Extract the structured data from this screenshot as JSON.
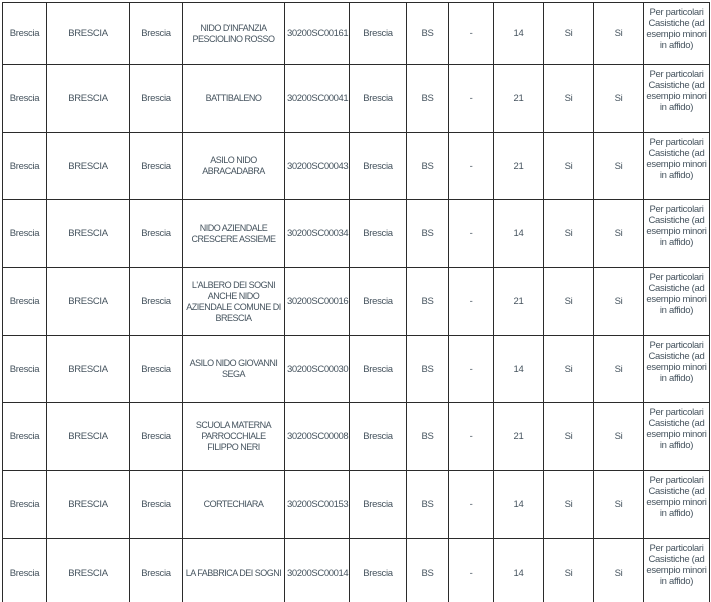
{
  "colors": {
    "background": "#ffffff",
    "border": "#2b2b2b",
    "text": "#45535e"
  },
  "table": {
    "rows": [
      [
        "Brescia",
        "BRESCIA",
        "Brescia",
        "NIDO D'INFANZIA PESCIOLINO ROSSO",
        "30200SC00161",
        "Brescia",
        "BS",
        "-",
        "14",
        "Si",
        "Si",
        "Per particolari Casistiche (ad esempio minori in affido)"
      ],
      [
        "Brescia",
        "BRESCIA",
        "Brescia",
        "BATTIBALENO",
        "30200SC00041",
        "Brescia",
        "BS",
        "-",
        "21",
        "Si",
        "Si",
        "Per particolari Casistiche (ad esempio minori in affido)"
      ],
      [
        "Brescia",
        "BRESCIA",
        "Brescia",
        "ASILO NIDO ABRACADABRA",
        "30200SC00043",
        "Brescia",
        "BS",
        "-",
        "21",
        "Si",
        "Si",
        "Per particolari Casistiche (ad esempio minori in affido)"
      ],
      [
        "Brescia",
        "BRESCIA",
        "Brescia",
        "NIDO AZIENDALE CRESCERE ASSIEME",
        "30200SC00034",
        "Brescia",
        "BS",
        "-",
        "14",
        "Si",
        "Si",
        "Per particolari Casistiche (ad esempio minori in affido)"
      ],
      [
        "Brescia",
        "BRESCIA",
        "Brescia",
        "L'ALBERO DEI SOGNI ANCHE NIDO AZIENDALE COMUNE DI BRESCIA",
        "30200SC00016",
        "Brescia",
        "BS",
        "-",
        "21",
        "Si",
        "Si",
        "Per particolari Casistiche (ad esempio minori in affido)"
      ],
      [
        "Brescia",
        "BRESCIA",
        "Brescia",
        "ASILO NIDO GIOVANNI SEGA",
        "30200SC00030",
        "Brescia",
        "BS",
        "-",
        "14",
        "Si",
        "Si",
        "Per particolari Casistiche (ad esempio minori in affido)"
      ],
      [
        "Brescia",
        "BRESCIA",
        "Brescia",
        "SCUOLA MATERNA PARROCCHIALE FILIPPO NERI",
        "30200SC00008",
        "Brescia",
        "BS",
        "-",
        "21",
        "Si",
        "Si",
        "Per particolari Casistiche (ad esempio minori in affido)"
      ],
      [
        "Brescia",
        "BRESCIA",
        "Brescia",
        "CORTECHIARA",
        "30200SC00153",
        "Brescia",
        "BS",
        "-",
        "14",
        "Si",
        "Si",
        "Per particolari Casistiche (ad esempio minori in affido)"
      ],
      [
        "Brescia",
        "BRESCIA",
        "Brescia",
        "LA FABBRICA DEI SOGNI",
        "30200SC00014",
        "Brescia",
        "BS",
        "-",
        "14",
        "Si",
        "Si",
        "Per particolari Casistiche (ad esempio minori in affido)"
      ]
    ]
  }
}
